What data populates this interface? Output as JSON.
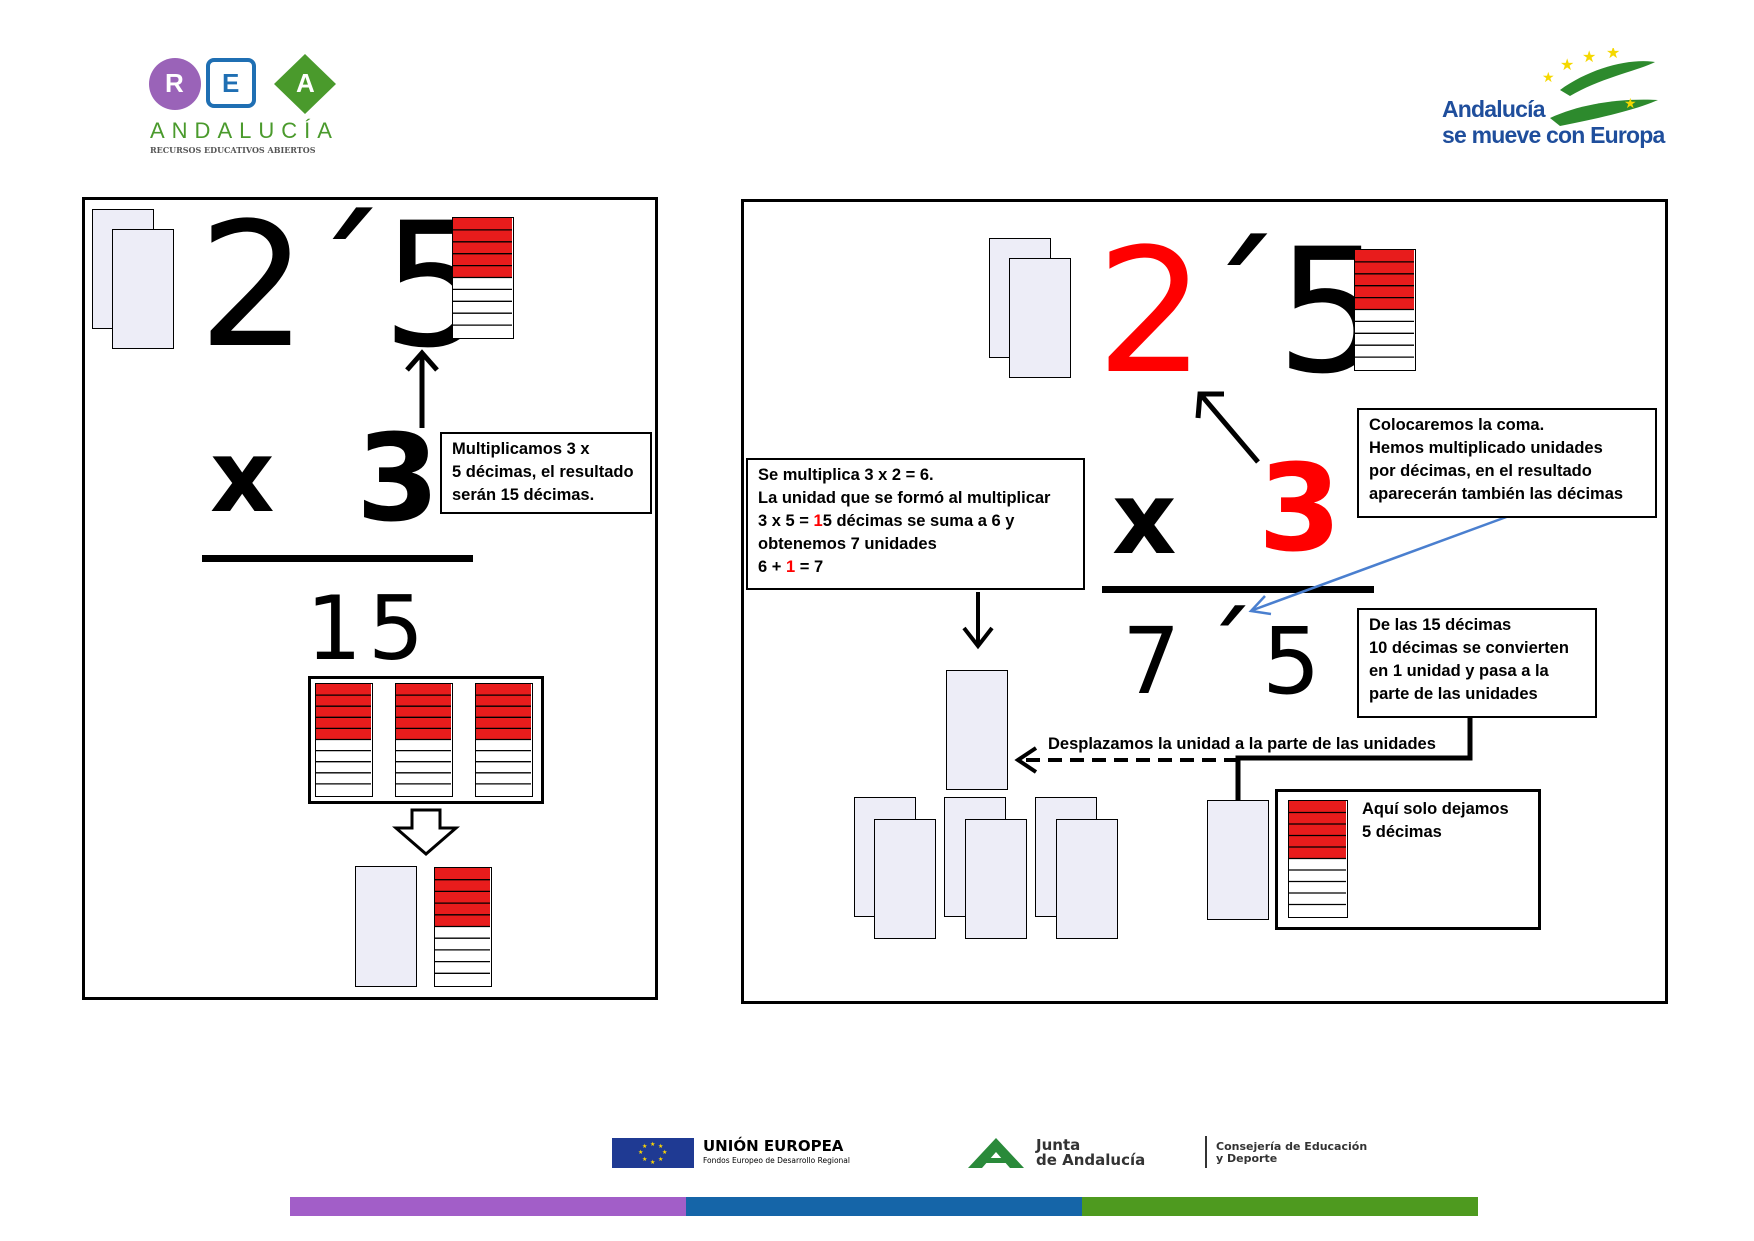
{
  "header": {
    "rea_letters": [
      "R",
      "E",
      "A"
    ],
    "rea_name": "ANDALUCÍA",
    "rea_subtitle": "RECURSOS EDUCATIVOS ABIERTOS",
    "europe_line1": "Andalucía",
    "europe_line2": "se mueve con Europa"
  },
  "left_panel": {
    "top_number": "2´5",
    "times_sign": "x",
    "multiplier": "3",
    "note_lines": [
      "Multiplicamos 3 x",
      "5 décimas, el resultado",
      "serán 15 décimas."
    ],
    "partial_result": "15",
    "tenths_shaded_per_strip": 5,
    "tenths_per_strip": 10
  },
  "right_panel": {
    "top_number_units": "2",
    "top_number_rest": "´5",
    "times_sign": "x",
    "multiplier": "3",
    "result_units": "7",
    "result_comma": "´",
    "result_tenths": "5",
    "note_multiply": {
      "line1": "Se multiplica 3 x 2 = 6.",
      "line2": "La unidad que  se formó al multiplicar",
      "line3_pre": "3 x 5 = ",
      "line3_red": "1",
      "line3_post": "5 décimas se suma a 6 y",
      "line4": "obtenemos  7 unidades",
      "line5_pre": "6 + ",
      "line5_red": "1",
      "line5_post": " = 7"
    },
    "note_comma_lines": [
      "Colocaremos la coma.",
      "Hemos multiplicado unidades",
      "por décimas, en el resultado",
      "aparecerán también las décimas"
    ],
    "note_decimals_lines": [
      "De las 15 décimas",
      "10 décimas se convierten",
      "en 1 unidad y pasa a la",
      "parte de las unidades"
    ],
    "move_label": "Desplazamos la unidad a la parte de las unidades",
    "note_remaining_lines": [
      "Aquí solo dejamos",
      "5 décimas"
    ]
  },
  "footer": {
    "eu_title": "UNIÓN EUROPEA",
    "eu_subtitle": "Fondos Europeo de Desarrollo Regional",
    "junta_line1": "Junta",
    "junta_line2": "de Andalucía",
    "consejeria_line1": "Consejería de Educación",
    "consejeria_line2": "y Deporte"
  },
  "colors": {
    "accent_red": "#ff0000",
    "tenth_red": "#e81c1c",
    "rea_purple": "#9a63b8",
    "rea_blue": "#1f6fb3",
    "rea_green": "#4a9a2c",
    "stripe_purple": "#a25ec8",
    "stripe_blue": "#1565a8",
    "stripe_green": "#4e9a1f",
    "eu_blue": "#1f3a93",
    "eu_star": "#ffd700"
  }
}
